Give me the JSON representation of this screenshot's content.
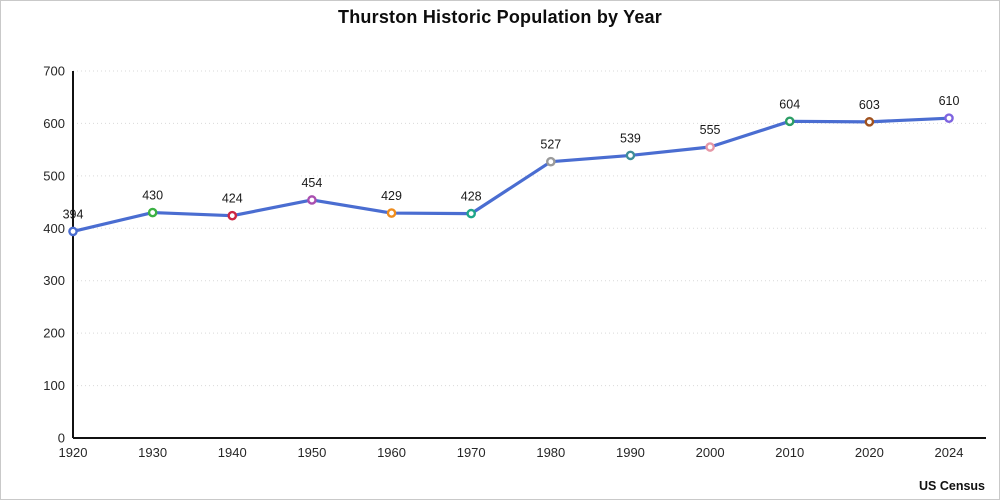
{
  "header": {
    "title": "Thurston Historic Population by Year"
  },
  "footer": {
    "source_label": "US Census"
  },
  "chart_data": {
    "type": "line",
    "title": "Thurston Historic Population by Year",
    "categories": [
      "1920",
      "1930",
      "1940",
      "1950",
      "1960",
      "1970",
      "1980",
      "1990",
      "2000",
      "2010",
      "2020",
      "2024"
    ],
    "values": [
      394,
      430,
      424,
      454,
      429,
      428,
      527,
      539,
      555,
      604,
      603,
      610
    ],
    "data_labels": [
      394,
      430,
      424,
      454,
      429,
      428,
      527,
      539,
      555,
      604,
      603,
      610
    ],
    "xlabel": "",
    "ylabel": "",
    "ylim": [
      0,
      700
    ],
    "yticks": [
      0,
      100,
      200,
      300,
      400,
      500,
      600,
      700
    ],
    "grid": "horizontal-dotted",
    "legend_position": "none",
    "line_color": "#4a6dd1",
    "marker_colors": [
      "#4a6dd1",
      "#3bb143",
      "#cc2644",
      "#a94fb0",
      "#ee8c1e",
      "#1fa68a",
      "#9a9a9a",
      "#3f8d99",
      "#e697a6",
      "#2d9e66",
      "#a0521f",
      "#7e64e0"
    ],
    "annotation_source": "US Census"
  }
}
